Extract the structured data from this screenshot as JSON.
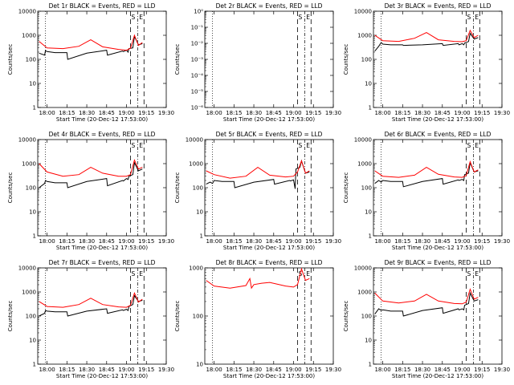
{
  "colors": {
    "events": "#000000",
    "lld": "#ff0000",
    "axes": "#000000"
  },
  "chart_data": [
    {
      "type": "line",
      "title": "Det 1r BLACK = Events, RED = LLD",
      "xlabel": "Start Time (20-Dec-12 17:53:00)",
      "ylabel": "Counts/sec",
      "yscale": "log",
      "ylim": [
        1,
        10000
      ],
      "yticks": [
        "1",
        "10",
        "100",
        "1000",
        "10000"
      ],
      "xlim": [
        17.883,
        19.5
      ],
      "xticks": [
        "18:00",
        "18:15",
        "18:30",
        "18:45",
        "19:00",
        "19:15",
        "19:30"
      ],
      "markers": [
        "S",
        "E"
      ],
      "series": [
        {
          "name": "Events",
          "x": [
            17.9,
            17.97,
            17.98,
            18.0,
            18.1,
            18.25,
            18.26,
            18.5,
            18.75,
            18.76,
            18.95,
            18.96,
            19.0,
            19.02,
            19.03,
            19.08,
            19.1,
            19.15,
            19.2
          ],
          "values": [
            180,
            150,
            230,
            210,
            190,
            190,
            100,
            180,
            240,
            150,
            220,
            210,
            240,
            200,
            280,
            300,
            900,
            400,
            450
          ]
        },
        {
          "name": "LLD",
          "x": [
            17.9,
            18.0,
            18.2,
            18.4,
            18.55,
            18.7,
            18.9,
            19.0,
            19.05,
            19.1,
            19.15,
            19.2
          ],
          "values": [
            560,
            300,
            280,
            350,
            650,
            330,
            260,
            240,
            290,
            1000,
            380,
            500
          ]
        }
      ]
    },
    {
      "type": "line",
      "title": "Det 2r BLACK = Events, RED = LLD",
      "xlabel": "Start Time (20-Dec-12 17:53:00)",
      "ylabel": "Counts/sec",
      "yscale": "log",
      "ylim": [
        1e-06,
        1
      ],
      "yticks": [
        "10⁻⁶",
        "10⁻⁵",
        "10⁻⁴",
        "10⁻³",
        "10⁻²",
        "10⁻¹",
        "10⁰"
      ],
      "xlim": [
        17.883,
        19.5
      ],
      "xticks": [
        "18:00",
        "18:15",
        "18:30",
        "18:45",
        "19:00",
        "19:15",
        "19:30"
      ],
      "markers": [
        "S",
        "E"
      ],
      "series": []
    },
    {
      "type": "line",
      "title": "Det 3r BLACK = Events, RED = LLD",
      "xlabel": "Start Time (20-Dec-12 17:53:00)",
      "ylabel": "Counts/sec",
      "yscale": "log",
      "ylim": [
        1,
        10000
      ],
      "yticks": [
        "1",
        "10",
        "100",
        "1000",
        "10000"
      ],
      "xlim": [
        17.883,
        19.5
      ],
      "xticks": [
        "18:00",
        "18:15",
        "18:30",
        "18:45",
        "19:00",
        "19:15",
        "19:30"
      ],
      "markers": [
        "S",
        "E"
      ],
      "series": [
        {
          "name": "Events",
          "x": [
            17.9,
            17.95,
            17.98,
            18.0,
            18.1,
            18.25,
            18.26,
            18.5,
            18.75,
            18.76,
            18.95,
            18.96,
            19.0,
            19.02,
            19.03,
            19.08,
            19.1,
            19.15,
            19.2
          ],
          "values": [
            220,
            350,
            500,
            430,
            400,
            400,
            380,
            400,
            450,
            380,
            450,
            400,
            450,
            400,
            480,
            550,
            1200,
            700,
            800
          ]
        },
        {
          "name": "LLD",
          "x": [
            17.9,
            18.0,
            18.2,
            18.4,
            18.55,
            18.7,
            18.9,
            19.0,
            19.05,
            19.1,
            19.15,
            19.2
          ],
          "values": [
            1000,
            600,
            560,
            750,
            1300,
            650,
            560,
            540,
            600,
            1600,
            800,
            1000
          ]
        }
      ]
    },
    {
      "type": "line",
      "title": "Det 4r BLACK = Events, RED = LLD",
      "xlabel": "Start Time (20-Dec-12 17:53:00)",
      "ylabel": "Counts/sec",
      "yscale": "log",
      "ylim": [
        1,
        10000
      ],
      "yticks": [
        "1",
        "10",
        "100",
        "1000",
        "10000"
      ],
      "xlim": [
        17.883,
        19.5
      ],
      "xticks": [
        "18:00",
        "18:15",
        "18:30",
        "18:45",
        "19:00",
        "19:15",
        "19:30"
      ],
      "markers": [
        "S",
        "E"
      ],
      "series": [
        {
          "name": "Events",
          "x": [
            17.9,
            17.97,
            17.98,
            18.0,
            18.1,
            18.25,
            18.26,
            18.5,
            18.75,
            18.76,
            18.95,
            18.96,
            19.0,
            19.02,
            19.03,
            19.08,
            19.1,
            19.15,
            19.2
          ],
          "values": [
            100,
            150,
            200,
            180,
            160,
            160,
            100,
            180,
            240,
            120,
            200,
            190,
            240,
            220,
            300,
            350,
            1100,
            500,
            600
          ]
        },
        {
          "name": "LLD",
          "x": [
            17.9,
            18.0,
            18.2,
            18.4,
            18.55,
            18.7,
            18.9,
            19.0,
            19.05,
            19.1,
            19.15,
            19.2
          ],
          "values": [
            1000,
            450,
            300,
            350,
            700,
            400,
            300,
            300,
            350,
            1400,
            600,
            700
          ]
        }
      ]
    },
    {
      "type": "line",
      "title": "Det 5r BLACK = Events, RED = LLD",
      "xlabel": "Start Time (20-Dec-12 17:53:00)",
      "ylabel": "Counts/sec",
      "yscale": "log",
      "ylim": [
        1,
        10000
      ],
      "yticks": [
        "1",
        "10",
        "100",
        "1000",
        "10000"
      ],
      "xlim": [
        17.883,
        19.5
      ],
      "xticks": [
        "18:00",
        "18:15",
        "18:30",
        "18:45",
        "19:00",
        "19:15",
        "19:30"
      ],
      "markers": [
        "S",
        "E"
      ],
      "series": [
        {
          "name": "Events",
          "x": [
            17.9,
            17.95,
            17.98,
            18.0,
            18.1,
            18.25,
            18.26,
            18.5,
            18.75,
            18.76,
            18.95,
            18.96,
            19.0,
            19.02,
            19.03,
            19.08,
            19.1,
            19.15,
            19.2
          ],
          "values": [
            140,
            170,
            150,
            200,
            180,
            180,
            100,
            170,
            220,
            140,
            200,
            190,
            210,
            90,
            600,
            700,
            1300,
            400,
            450
          ]
        },
        {
          "name": "LLD",
          "x": [
            17.9,
            18.0,
            18.2,
            18.4,
            18.55,
            18.7,
            18.9,
            19.0,
            19.05,
            19.1,
            19.15,
            19.2
          ],
          "values": [
            500,
            350,
            250,
            300,
            700,
            330,
            280,
            300,
            450,
            1300,
            400,
            500
          ]
        }
      ]
    },
    {
      "type": "line",
      "title": "Det 6r BLACK = Events, RED = LLD",
      "xlabel": "Start Time (20-Dec-12 17:53:00)",
      "ylabel": "Counts/sec",
      "yscale": "log",
      "ylim": [
        1,
        10000
      ],
      "yticks": [
        "1",
        "10",
        "100",
        "1000",
        "10000"
      ],
      "xlim": [
        17.883,
        19.5
      ],
      "xticks": [
        "18:00",
        "18:15",
        "18:30",
        "18:45",
        "19:00",
        "19:15",
        "19:30"
      ],
      "markers": [
        "S",
        "E"
      ],
      "series": [
        {
          "name": "Events",
          "x": [
            17.9,
            17.95,
            17.98,
            18.0,
            18.1,
            18.25,
            18.26,
            18.5,
            18.75,
            18.76,
            18.95,
            18.96,
            19.0,
            19.02,
            19.03,
            19.08,
            19.1,
            19.15,
            19.2
          ],
          "values": [
            150,
            200,
            170,
            200,
            180,
            180,
            110,
            180,
            240,
            140,
            210,
            200,
            220,
            200,
            350,
            400,
            1100,
            450,
            500
          ]
        },
        {
          "name": "LLD",
          "x": [
            17.9,
            18.0,
            18.2,
            18.4,
            18.55,
            18.7,
            18.9,
            19.0,
            19.05,
            19.1,
            19.15,
            19.2
          ],
          "values": [
            500,
            300,
            270,
            330,
            700,
            360,
            280,
            270,
            320,
            1200,
            450,
            550
          ]
        }
      ]
    },
    {
      "type": "line",
      "title": "Det 7r BLACK = Events, RED = LLD",
      "xlabel": "Start Time (20-Dec-12 17:53:00)",
      "ylabel": "Counts/sec",
      "yscale": "log",
      "ylim": [
        1,
        10000
      ],
      "yticks": [
        "1",
        "10",
        "100",
        "1000",
        "10000"
      ],
      "xlim": [
        17.883,
        19.5
      ],
      "xticks": [
        "18:00",
        "18:15",
        "18:30",
        "18:45",
        "19:00",
        "19:15",
        "19:30"
      ],
      "markers": [
        "S",
        "E"
      ],
      "series": [
        {
          "name": "Events",
          "x": [
            17.9,
            17.97,
            17.98,
            18.0,
            18.1,
            18.25,
            18.26,
            18.5,
            18.75,
            18.76,
            18.95,
            18.96,
            19.0,
            19.02,
            19.03,
            19.08,
            19.1,
            19.15,
            19.2
          ],
          "values": [
            100,
            130,
            170,
            160,
            150,
            150,
            100,
            160,
            200,
            130,
            180,
            170,
            190,
            170,
            250,
            300,
            700,
            400,
            450
          ]
        },
        {
          "name": "LLD",
          "x": [
            17.9,
            18.0,
            18.2,
            18.4,
            18.55,
            18.7,
            18.9,
            19.0,
            19.05,
            19.1,
            19.15,
            19.2
          ],
          "values": [
            400,
            250,
            230,
            300,
            550,
            300,
            240,
            230,
            280,
            900,
            380,
            500
          ]
        }
      ]
    },
    {
      "type": "line",
      "title": "Det 8r BLACK = Events, RED = LLD",
      "xlabel": "Start Time (20-Dec-12 17:53:00)",
      "ylabel": "Counts/sec",
      "yscale": "log",
      "ylim": [
        10,
        1000
      ],
      "yticks": [
        "10",
        "100",
        "1000"
      ],
      "xlim": [
        17.883,
        19.5
      ],
      "xticks": [
        "18:00",
        "18:15",
        "18:30",
        "18:45",
        "19:00",
        "19:15",
        "19:30"
      ],
      "markers": [
        "S",
        "E"
      ],
      "series": [
        {
          "name": "LLD",
          "x": [
            17.9,
            18.0,
            18.2,
            18.4,
            18.45,
            18.47,
            18.5,
            18.6,
            18.7,
            18.9,
            19.0,
            19.05,
            19.1,
            19.15,
            19.2
          ],
          "values": [
            550,
            420,
            380,
            430,
            600,
            380,
            450,
            480,
            500,
            420,
            400,
            450,
            950,
            550,
            600
          ]
        }
      ]
    },
    {
      "type": "line",
      "title": "Det 9r BLACK = Events, RED = LLD",
      "xlabel": "Start Time (20-Dec-12 17:53:00)",
      "ylabel": "Counts/sec",
      "yscale": "log",
      "ylim": [
        1,
        10000
      ],
      "yticks": [
        "1",
        "10",
        "100",
        "1000",
        "10000"
      ],
      "xlim": [
        17.883,
        19.5
      ],
      "xticks": [
        "18:00",
        "18:15",
        "18:30",
        "18:45",
        "19:00",
        "19:15",
        "19:30"
      ],
      "markers": [
        "S",
        "E"
      ],
      "series": [
        {
          "name": "Events",
          "x": [
            17.9,
            17.95,
            17.98,
            18.0,
            18.1,
            18.25,
            18.26,
            18.5,
            18.75,
            18.76,
            18.95,
            18.96,
            19.0,
            19.02,
            19.03,
            19.08,
            19.1,
            19.15,
            19.2
          ],
          "values": [
            120,
            200,
            170,
            180,
            160,
            160,
            100,
            170,
            220,
            130,
            200,
            180,
            200,
            180,
            280,
            330,
            900,
            420,
            480
          ]
        },
        {
          "name": "LLD",
          "x": [
            17.9,
            18.0,
            18.2,
            18.4,
            18.55,
            18.7,
            18.9,
            19.0,
            19.05,
            19.1,
            19.15,
            19.2
          ],
          "values": [
            900,
            420,
            350,
            420,
            800,
            420,
            330,
            320,
            380,
            1300,
            500,
            600
          ]
        }
      ]
    }
  ],
  "vlines": {
    "dotted": [
      17.98
    ],
    "dashed": [
      19.05,
      19.22
    ],
    "dashdot": [
      19.14
    ]
  }
}
